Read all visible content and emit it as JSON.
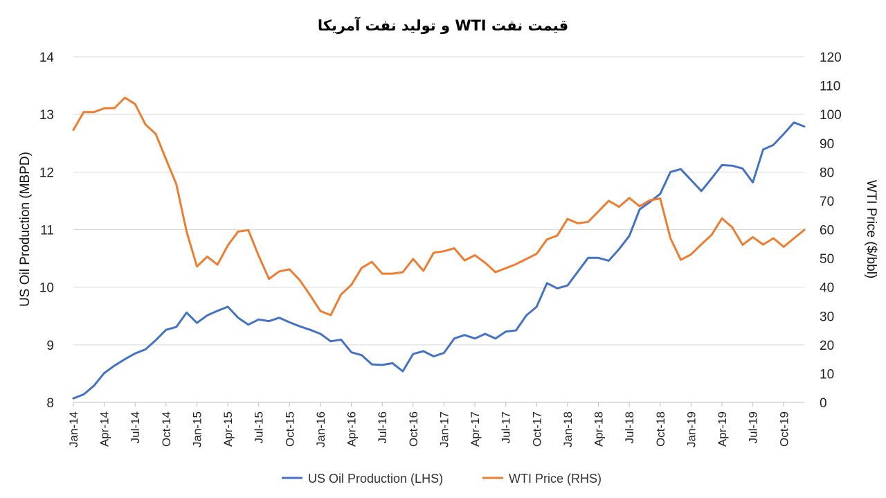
{
  "chart_data": {
    "type": "line",
    "title": "قیمت نفت WTI و تولید نفت آمریکا",
    "ylabel_left": "US Oil Production (MBPD)",
    "ylabel_right": "WTI Price ($/bbl)",
    "ylim_left": [
      8,
      14
    ],
    "ylim_right": [
      0,
      120
    ],
    "yticks_left": [
      "8",
      "9",
      "10",
      "11",
      "12",
      "13",
      "14"
    ],
    "yticks_right": [
      "0",
      "10",
      "20",
      "30",
      "40",
      "50",
      "60",
      "70",
      "80",
      "90",
      "100",
      "110",
      "120"
    ],
    "x_tick_labels": [
      "Jan-14",
      "Apr-14",
      "Jul-14",
      "Oct-14",
      "Jan-15",
      "Apr-15",
      "Jul-15",
      "Oct-15",
      "Jan-16",
      "Apr-16",
      "Jul-16",
      "Oct-16",
      "Jan-17",
      "Apr-17",
      "Jul-17",
      "Oct-17",
      "Jan-18",
      "Apr-18",
      "Jul-18",
      "Oct-18",
      "Jan-19",
      "Apr-19",
      "Jul-19",
      "Oct-19"
    ],
    "months_per_tick": 3,
    "legend_position": "bottom",
    "series": [
      {
        "name": "US Oil Production (LHS)",
        "axis": "left",
        "color": "#4472C4",
        "values": [
          8.07,
          8.14,
          8.29,
          8.51,
          8.64,
          8.75,
          8.85,
          8.92,
          9.08,
          9.26,
          9.31,
          9.56,
          9.38,
          9.51,
          9.59,
          9.66,
          9.47,
          9.35,
          9.44,
          9.41,
          9.47,
          9.39,
          9.32,
          9.26,
          9.19,
          9.06,
          9.09,
          8.87,
          8.82,
          8.66,
          8.65,
          8.68,
          8.54,
          8.84,
          8.89,
          8.8,
          8.86,
          9.11,
          9.17,
          9.11,
          9.19,
          9.11,
          9.23,
          9.25,
          9.51,
          9.66,
          10.07,
          9.98,
          10.03,
          10.27,
          10.51,
          10.51,
          10.46,
          10.66,
          10.89,
          11.35,
          11.48,
          11.62,
          12.0,
          12.05,
          11.86,
          11.67,
          11.89,
          12.12,
          12.11,
          12.06,
          11.82,
          12.39,
          12.47,
          12.66,
          12.86,
          12.79
        ]
      },
      {
        "name": "WTI Price (RHS)",
        "axis": "right",
        "color": "#ED7D31",
        "values": [
          94.6,
          100.8,
          100.8,
          102.1,
          102.2,
          105.8,
          103.6,
          96.5,
          93.2,
          84.4,
          75.8,
          59.3,
          47.2,
          50.6,
          47.8,
          54.5,
          59.3,
          59.8,
          50.9,
          42.9,
          45.5,
          46.2,
          42.4,
          37.2,
          31.7,
          30.3,
          37.5,
          40.8,
          46.7,
          48.8,
          44.7,
          44.7,
          45.2,
          49.8,
          45.7,
          52.0,
          52.5,
          53.5,
          49.3,
          51.1,
          48.5,
          45.2,
          46.6,
          48.0,
          49.8,
          51.6,
          56.6,
          57.9,
          63.7,
          62.2,
          62.7,
          66.3,
          70.0,
          67.9,
          71.0,
          68.1,
          70.2,
          70.8,
          57.0,
          49.5,
          51.4,
          54.9,
          58.2,
          63.9,
          60.8,
          54.7,
          57.4,
          54.8,
          57.0,
          54.0,
          57.0,
          59.9
        ]
      }
    ]
  }
}
